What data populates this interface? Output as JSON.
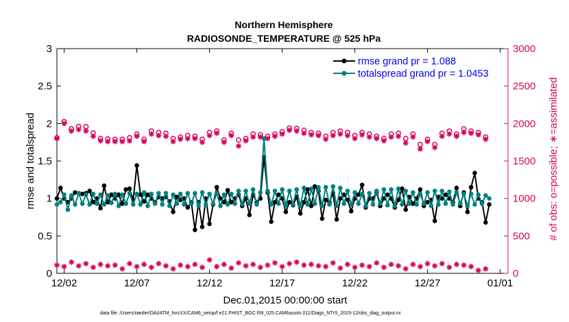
{
  "chart_data": {
    "type": "line",
    "title": "Northern Hemisphere",
    "subtitle": "RADIOSONDE_TEMPERATURE @ 525 hPa",
    "xlabel": "Dec.01,2015 00:00:00 start",
    "ylabel_left": "rmse and totalspread",
    "ylabel_right": "# of obs: o=possible; ∗=assimilated",
    "footnote": "data file: /Users/raeder/DAI/ATM_forcXX/CAM6_setup/f.e21.FHIST_BGC.f09_025.CAM6assim.011/Diags_NTrS_2015-12/obs_diag_output.nc",
    "x_range": [
      1.5,
      31.25
    ],
    "x_ticks": [
      2,
      7,
      12,
      17,
      22,
      27,
      32
    ],
    "x_tick_labels": [
      "12/02",
      "12/07",
      "12/12",
      "12/17",
      "12/22",
      "12/27",
      "01/01"
    ],
    "y_left_range": [
      0,
      3
    ],
    "y_left_ticks": [
      "0",
      "0.5",
      "1",
      "1.5",
      "2",
      "2.5",
      "3"
    ],
    "y_right_range": [
      0,
      3000
    ],
    "y_right_ticks": [
      "0",
      "500",
      "1000",
      "1500",
      "2000",
      "2500",
      "3000"
    ],
    "legend": [
      "rmse grand pr = 1.088",
      "totalspread grand pr = 1.0453"
    ],
    "colors": {
      "rmse": "#000000",
      "totalspread": "#008080",
      "obs": "#d6045a",
      "legend_text": "#0000ee"
    },
    "series": [
      {
        "name": "rmse",
        "axis": "left",
        "x": [
          1.5,
          1.75,
          2.0,
          2.25,
          2.5,
          2.75,
          3.0,
          3.25,
          3.5,
          3.75,
          4.0,
          4.25,
          4.5,
          4.75,
          5.0,
          5.25,
          5.5,
          5.75,
          6.0,
          6.25,
          6.5,
          6.75,
          7.0,
          7.25,
          7.5,
          7.75,
          8.0,
          8.25,
          8.5,
          8.75,
          9.0,
          9.25,
          9.5,
          9.75,
          10.0,
          10.25,
          10.5,
          10.75,
          11.0,
          11.25,
          11.5,
          11.75,
          12.0,
          12.25,
          12.5,
          12.75,
          13.0,
          13.25,
          13.5,
          13.75,
          14.0,
          14.25,
          14.5,
          14.75,
          15.0,
          15.25,
          15.5,
          15.75,
          16.0,
          16.25,
          16.5,
          16.75,
          17.0,
          17.25,
          17.5,
          17.75,
          18.0,
          18.25,
          18.5,
          18.75,
          19.0,
          19.25,
          19.5,
          19.75,
          20.0,
          20.25,
          20.5,
          20.75,
          21.0,
          21.25,
          21.5,
          21.75,
          22.0,
          22.25,
          22.5,
          22.75,
          23.0,
          23.25,
          23.5,
          23.75,
          24.0,
          24.25,
          24.5,
          24.75,
          25.0,
          25.25,
          25.5,
          25.75,
          26.0,
          26.25,
          26.5,
          26.75,
          27.0,
          27.25,
          27.5,
          27.75,
          28.0,
          28.25,
          28.5,
          28.75,
          29.0,
          29.25,
          29.5,
          29.75,
          30.0,
          30.25,
          30.5,
          30.75,
          31.0,
          31.25
        ],
        "values": [
          1.0,
          1.14,
          1.0,
          0.95,
          1.0,
          1.08,
          1.07,
          1.06,
          1.07,
          1.1,
          0.95,
          1.0,
          0.87,
          1.17,
          0.95,
          1.05,
          1.0,
          1.05,
          0.93,
          1.12,
          1.13,
          0.98,
          1.44,
          1.05,
          0.96,
          1.05,
          1.0,
          0.95,
          1.02,
          1.0,
          1.02,
          0.96,
          0.82,
          1.02,
          0.98,
          1.0,
          0.88,
          0.95,
          0.58,
          0.95,
          0.62,
          1.0,
          0.66,
          0.92,
          1.15,
          1.0,
          0.95,
          1.11,
          0.95,
          1.0,
          1.05,
          0.9,
          1.0,
          0.78,
          1.05,
          0.95,
          1.0,
          1.55,
          1.08,
          0.69,
          0.95,
          1.05,
          1.0,
          0.82,
          0.95,
          0.91,
          1.02,
          0.8,
          0.95,
          1.12,
          0.9,
          1.16,
          1.1,
          0.73,
          0.98,
          0.95,
          1.07,
          0.72,
          1.0,
          1.05,
          0.98,
          0.83,
          1.0,
          1.05,
          1.18,
          0.88,
          1.0,
          1.0,
          1.08,
          0.9,
          1.0,
          1.05,
          1.0,
          0.88,
          0.98,
          1.13,
          0.85,
          1.02,
          0.93,
          1.0,
          1.12,
          0.9,
          0.95,
          0.98,
          0.7,
          1.02,
          1.0,
          1.05,
          1.0,
          0.95,
          1.14,
          0.9,
          1.08,
          0.82,
          1.15,
          1.34,
          1.0,
          0.95,
          0.68,
          0.92
        ],
        "marker": "filled-circle"
      },
      {
        "name": "totalspread",
        "axis": "left",
        "x": [
          1.5,
          1.75,
          2.0,
          2.25,
          2.5,
          2.75,
          3.0,
          3.25,
          3.5,
          3.75,
          4.0,
          4.25,
          4.5,
          4.75,
          5.0,
          5.25,
          5.5,
          5.75,
          6.0,
          6.25,
          6.5,
          6.75,
          7.0,
          7.25,
          7.5,
          7.75,
          8.0,
          8.25,
          8.5,
          8.75,
          9.0,
          9.25,
          9.5,
          9.75,
          10.0,
          10.25,
          10.5,
          10.75,
          11.0,
          11.25,
          11.5,
          11.75,
          12.0,
          12.25,
          12.5,
          12.75,
          13.0,
          13.25,
          13.5,
          13.75,
          14.0,
          14.25,
          14.5,
          14.75,
          15.0,
          15.25,
          15.5,
          15.75,
          16.0,
          16.25,
          16.5,
          16.75,
          17.0,
          17.25,
          17.5,
          17.75,
          18.0,
          18.25,
          18.5,
          18.75,
          19.0,
          19.25,
          19.5,
          19.75,
          20.0,
          20.25,
          20.5,
          20.75,
          21.0,
          21.25,
          21.5,
          21.75,
          22.0,
          22.25,
          22.5,
          22.75,
          23.0,
          23.25,
          23.5,
          23.75,
          24.0,
          24.25,
          24.5,
          24.75,
          25.0,
          25.25,
          25.5,
          25.75,
          26.0,
          26.25,
          26.5,
          26.75,
          27.0,
          27.25,
          27.5,
          27.75,
          28.0,
          28.25,
          28.5,
          28.75,
          29.0,
          29.25,
          29.5,
          29.75,
          30.0,
          30.25,
          30.5,
          30.75,
          31.0,
          31.25
        ],
        "values": [
          0.92,
          0.95,
          1.05,
          0.85,
          1.04,
          0.92,
          1.07,
          0.93,
          1.05,
          0.92,
          1.06,
          0.93,
          1.05,
          0.92,
          1.04,
          0.94,
          1.06,
          0.9,
          1.05,
          0.93,
          1.07,
          0.92,
          1.06,
          0.92,
          1.08,
          0.9,
          1.06,
          0.93,
          1.07,
          0.92,
          1.07,
          0.9,
          1.05,
          0.93,
          1.06,
          0.92,
          1.07,
          0.93,
          1.07,
          0.9,
          1.08,
          0.92,
          1.06,
          0.93,
          1.07,
          0.9,
          1.05,
          0.92,
          1.06,
          0.93,
          1.1,
          0.92,
          1.1,
          0.93,
          1.12,
          0.92,
          1.08,
          1.8,
          1.1,
          0.92,
          1.1,
          0.93,
          1.12,
          0.91,
          1.1,
          0.92,
          1.12,
          0.9,
          1.14,
          0.92,
          1.13,
          0.93,
          1.15,
          0.9,
          1.15,
          0.92,
          1.16,
          0.9,
          1.14,
          0.93,
          1.1,
          0.92,
          1.08,
          0.93,
          1.06,
          0.9,
          1.07,
          0.92,
          1.1,
          0.93,
          1.12,
          0.91,
          1.12,
          0.9,
          1.13,
          0.92,
          1.1,
          0.93,
          1.08,
          0.92,
          1.06,
          0.93,
          1.08,
          0.9,
          1.1,
          0.92,
          1.1,
          0.93,
          1.09,
          0.92,
          1.08,
          0.93,
          1.06,
          0.9,
          1.06,
          0.92,
          1.05,
          0.93,
          1.04,
          1.0
        ],
        "marker": "filled-circle"
      },
      {
        "name": "obs_possible",
        "axis": "right",
        "x": [
          1.5,
          2.0,
          2.5,
          3.0,
          3.5,
          4.0,
          4.5,
          5.0,
          5.5,
          6.0,
          6.5,
          7.0,
          7.5,
          8.0,
          8.5,
          9.0,
          9.5,
          10.0,
          10.5,
          11.0,
          11.5,
          12.0,
          12.5,
          13.0,
          13.5,
          14.0,
          14.5,
          15.0,
          15.5,
          16.0,
          16.5,
          17.0,
          17.5,
          18.0,
          18.5,
          19.0,
          19.5,
          20.0,
          20.5,
          21.0,
          21.5,
          22.0,
          22.5,
          23.0,
          23.5,
          24.0,
          24.5,
          25.0,
          25.5,
          26.0,
          26.5,
          27.0,
          27.5,
          28.0,
          28.5,
          29.0,
          29.5,
          30.0,
          30.5,
          31.0
        ],
        "values": [
          1810,
          2025,
          1930,
          1960,
          1960,
          1875,
          1800,
          1795,
          1790,
          1790,
          1810,
          1860,
          1790,
          1900,
          1880,
          1870,
          1800,
          1820,
          1840,
          1830,
          1790,
          1880,
          1900,
          1780,
          1870,
          1780,
          1800,
          1860,
          1850,
          1830,
          1860,
          1890,
          1940,
          1935,
          1910,
          1880,
          1870,
          1830,
          1880,
          1900,
          1880,
          1840,
          1880,
          1860,
          1830,
          1800,
          1860,
          1870,
          1800,
          1860,
          1720,
          1790,
          1720,
          1870,
          1900,
          1860,
          1930,
          1900,
          1880,
          1820
        ],
        "marker": "open-circle"
      },
      {
        "name": "obs_assimilated",
        "axis": "right",
        "x": [
          1.5,
          2.0,
          2.5,
          3.0,
          3.5,
          4.0,
          4.5,
          5.0,
          5.5,
          6.0,
          6.5,
          7.0,
          7.5,
          8.0,
          8.5,
          9.0,
          9.5,
          10.0,
          10.5,
          11.0,
          11.5,
          12.0,
          12.5,
          13.0,
          13.5,
          14.0,
          14.5,
          15.0,
          15.5,
          16.0,
          16.5,
          17.0,
          17.5,
          18.0,
          18.5,
          19.0,
          19.5,
          20.0,
          20.5,
          21.0,
          21.5,
          22.0,
          22.5,
          23.0,
          23.5,
          24.0,
          24.5,
          25.0,
          25.5,
          26.0,
          26.5,
          27.0,
          27.5,
          28.0,
          28.5,
          29.0,
          29.5,
          30.0,
          30.5,
          31.0
        ],
        "values": [
          1800,
          2000,
          1900,
          1920,
          1900,
          1830,
          1770,
          1760,
          1760,
          1760,
          1770,
          1830,
          1760,
          1860,
          1840,
          1830,
          1760,
          1790,
          1800,
          1800,
          1750,
          1840,
          1870,
          1750,
          1840,
          1700,
          1770,
          1820,
          1820,
          1800,
          1830,
          1860,
          1910,
          1900,
          1870,
          1850,
          1840,
          1790,
          1840,
          1860,
          1840,
          1800,
          1850,
          1820,
          1800,
          1770,
          1820,
          1830,
          1740,
          1820,
          1660,
          1760,
          1680,
          1830,
          1860,
          1830,
          1880,
          1870,
          1850,
          1790
        ],
        "marker": "asterisk"
      },
      {
        "name": "obs_low_assimilated",
        "axis": "right",
        "x": [
          1.5,
          2.0,
          2.5,
          3.0,
          3.5,
          4.0,
          4.5,
          5.0,
          5.5,
          6.0,
          6.5,
          7.0,
          7.5,
          8.0,
          8.5,
          9.0,
          9.5,
          10.0,
          10.5,
          11.0,
          11.5,
          12.0,
          12.5,
          13.0,
          13.5,
          14.0,
          14.5,
          15.0,
          15.5,
          16.0,
          16.5,
          17.0,
          17.5,
          18.0,
          18.5,
          19.0,
          19.5,
          20.0,
          20.5,
          21.0,
          21.5,
          22.0,
          22.5,
          23.0,
          23.5,
          24.0,
          24.5,
          25.0,
          25.5,
          26.0,
          26.5,
          27.0,
          27.5,
          28.0,
          28.5,
          29.0,
          29.5,
          30.0,
          30.5,
          31.0
        ],
        "values": [
          110,
          90,
          150,
          100,
          130,
          80,
          120,
          100,
          110,
          60,
          130,
          90,
          120,
          80,
          130,
          100,
          60,
          110,
          90,
          120,
          80,
          180,
          90,
          120,
          70,
          140,
          100,
          120,
          80,
          110,
          140,
          90,
          130,
          150,
          110,
          120,
          100,
          90,
          140,
          70,
          120,
          80,
          110,
          90,
          140,
          80,
          120,
          100,
          60,
          120,
          90,
          130,
          100,
          130,
          80,
          120,
          110,
          90,
          40,
          60
        ],
        "marker": "asterisk"
      }
    ]
  }
}
